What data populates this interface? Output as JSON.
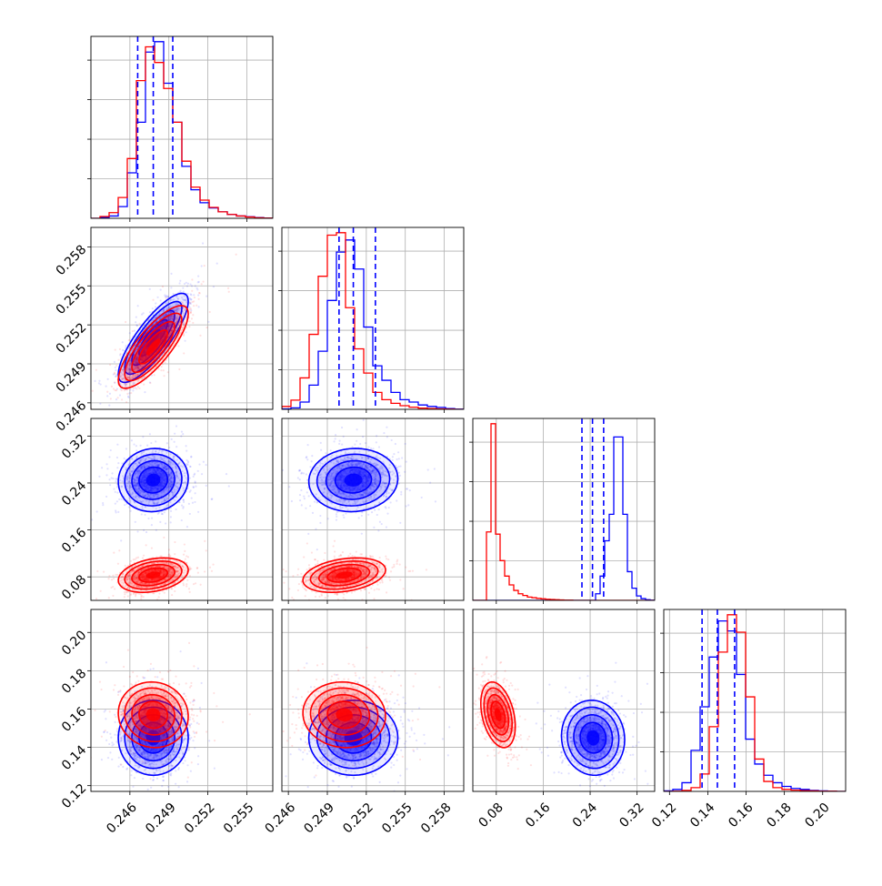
{
  "chart_data": {
    "type": "corner",
    "parameters": [
      {
        "range": [
          0.243,
          0.257
        ],
        "ticks": [
          "0.246",
          "0.249",
          "0.252",
          "0.255"
        ],
        "tick_values": [
          0.246,
          0.249,
          0.252,
          0.255
        ]
      },
      {
        "range": [
          0.2455,
          0.2595
        ],
        "ticks": [
          "0.246",
          "0.249",
          "0.252",
          "0.255",
          "0.258"
        ],
        "tick_values": [
          0.246,
          0.249,
          0.252,
          0.255,
          0.258
        ]
      },
      {
        "range": [
          0.04,
          0.35
        ],
        "ticks": [
          "0.08",
          "0.16",
          "0.24",
          "0.32"
        ],
        "tick_values": [
          0.08,
          0.16,
          0.24,
          0.32
        ]
      },
      {
        "range": [
          0.117,
          0.212
        ],
        "ticks": [
          "0.12",
          "0.14",
          "0.16",
          "0.18",
          "0.20"
        ],
        "tick_values": [
          0.12,
          0.14,
          0.16,
          0.18,
          0.2
        ]
      }
    ],
    "series": [
      {
        "color": "#0000ff",
        "means": [
          0.2478,
          0.251,
          0.245,
          0.145
        ],
        "sds": [
          0.0011,
          0.0014,
          0.022,
          0.008
        ],
        "quantiles": [
          [
            0.2466,
            0.2478,
            0.2493
          ],
          [
            0.2499,
            0.251,
            0.2527
          ],
          [
            0.226,
            0.244,
            0.263
          ],
          [
            0.137,
            0.145,
            0.154
          ]
        ],
        "hist": [
          {
            "edges": [
              0.243,
              0.257
            ],
            "counts": [
              0,
              3,
              9,
              45,
              175,
              370,
              640,
              680,
              520,
              370,
              200,
              110,
              60,
              40,
              25,
              15,
              9,
              6,
              3,
              1
            ]
          },
          {
            "edges": [
              0.2455,
              0.2595
            ],
            "counts": [
              2,
              6,
              30,
              100,
              240,
              450,
              650,
              700,
              580,
              340,
              180,
              120,
              70,
              40,
              30,
              18,
              12,
              8,
              3,
              1
            ]
          },
          {
            "edges": [
              0.04,
              0.35
            ],
            "counts": [
              0,
              0,
              0,
              0,
              0,
              0,
              0,
              0,
              0,
              0,
              0,
              0,
              0,
              0,
              0,
              0,
              0,
              0,
              0,
              0,
              0,
              0,
              0,
              0,
              0,
              0,
              0,
              30,
              110,
              270,
              390,
              740,
              740,
              390,
              130,
              55,
              20,
              8,
              3,
              1
            ]
          },
          {
            "edges": [
              0.117,
              0.212
            ],
            "counts": [
              2,
              8,
              35,
              165,
              340,
              540,
              685,
              645,
              470,
              210,
              110,
              65,
              35,
              20,
              12,
              8,
              4,
              2,
              1,
              0
            ]
          }
        ]
      },
      {
        "color": "#ff0000",
        "means": [
          0.2478,
          0.2503,
          0.083,
          0.157
        ],
        "sds": [
          0.0011,
          0.0013,
          0.012,
          0.007
        ],
        "hist": [
          {
            "edges": [
              0.243,
              0.257
            ],
            "counts": [
              0,
              7,
              22,
              80,
              230,
              530,
              660,
              600,
              500,
              370,
              220,
              120,
              70,
              42,
              25,
              15,
              9,
              5,
              2,
              1
            ]
          },
          {
            "edges": [
              0.2455,
              0.2595
            ],
            "counts": [
              12,
              38,
              130,
              310,
              550,
              720,
              730,
              420,
              250,
              150,
              70,
              40,
              25,
              15,
              9,
              5,
              3,
              2,
              1,
              0
            ]
          },
          {
            "edges": [
              0.04,
              0.35
            ],
            "counts": [
              0,
              0,
              0,
              310,
              800,
              300,
              180,
              110,
              70,
              45,
              30,
              22,
              15,
              12,
              9,
              7,
              5,
              4,
              3,
              2,
              1,
              1,
              0,
              0,
              0,
              0,
              0,
              0,
              0,
              0,
              0,
              0,
              0,
              0,
              0,
              0,
              0,
              0,
              0,
              0
            ]
          },
          {
            "edges": [
              0.117,
              0.212
            ],
            "counts": [
              0,
              1,
              4,
              15,
              70,
              260,
              560,
              710,
              640,
              380,
              130,
              40,
              15,
              8,
              5,
              3,
              2,
              1,
              1,
              0
            ]
          }
        ]
      }
    ],
    "correlations": {
      "0": {
        "0,1": 0.82,
        "0,2": 0.05,
        "0,3": 0.0,
        "1,2": 0.05,
        "1,3": 0.0,
        "2,3": -0.05
      },
      "1": {
        "0,1": 0.8,
        "0,2": 0.3,
        "0,3": -0.05,
        "1,2": 0.3,
        "1,3": -0.05,
        "2,3": -0.35
      }
    },
    "grid": true,
    "legend": false
  }
}
